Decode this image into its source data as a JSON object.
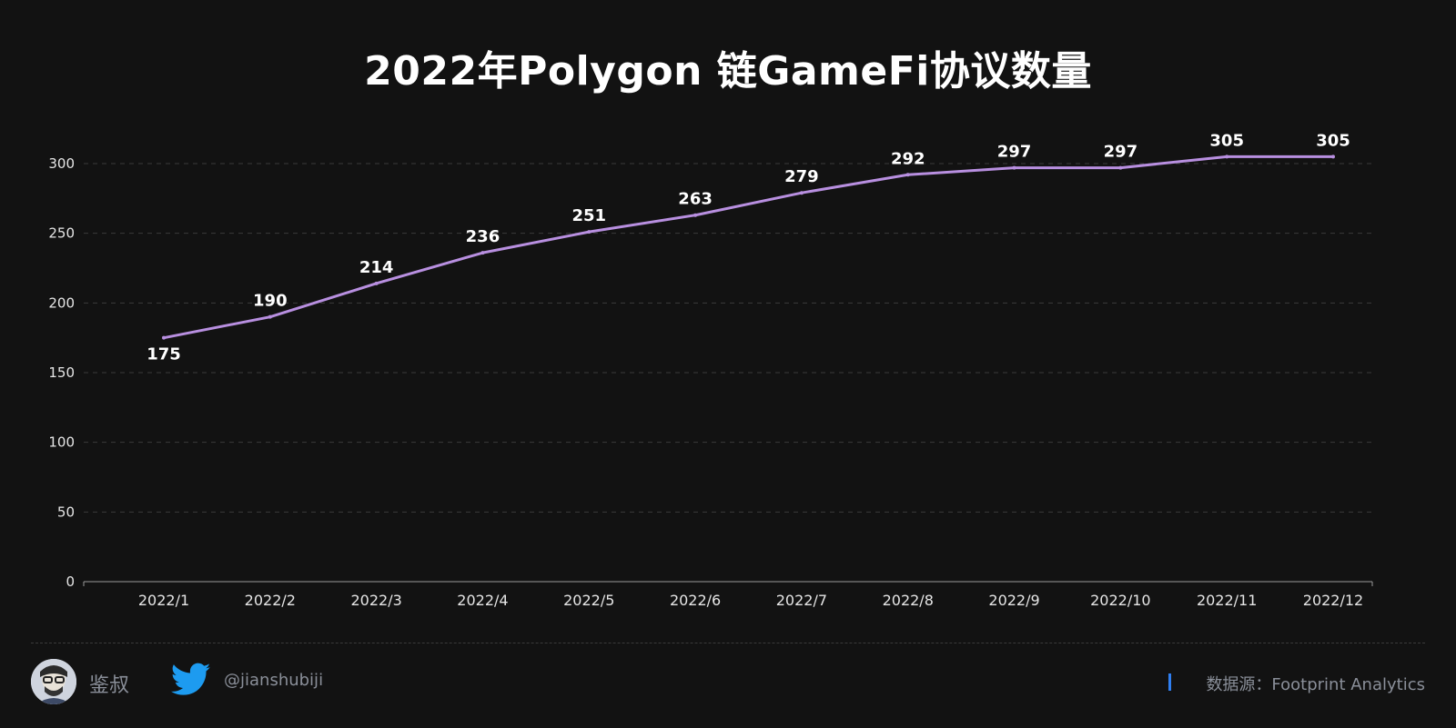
{
  "chart_data": {
    "type": "line",
    "title": "2022年Polygon 链GameFi协议数量",
    "categories": [
      "2022/1",
      "2022/2",
      "2022/3",
      "2022/4",
      "2022/5",
      "2022/6",
      "2022/7",
      "2022/8",
      "2022/9",
      "2022/10",
      "2022/11",
      "2022/12"
    ],
    "values": [
      175,
      190,
      214,
      236,
      251,
      263,
      279,
      292,
      297,
      297,
      305,
      305
    ],
    "ylim": [
      0,
      300
    ],
    "yticks": [
      0,
      50,
      100,
      150,
      200,
      250,
      300
    ],
    "xlabel": "",
    "ylabel": "",
    "grid": true,
    "grid_style": "dashed-horizontal",
    "line_color": "#b88fe0",
    "label_color": "#ffffff",
    "background": "#121212"
  },
  "footer": {
    "author": "鉴叔",
    "handle": "@jianshubiji",
    "source": "数据源：Footprint  Analytics",
    "icons": [
      "avatar",
      "twitter-bird-icon"
    ],
    "accent": "#2f7ff1",
    "twitter_color": "#1d9bf0"
  }
}
